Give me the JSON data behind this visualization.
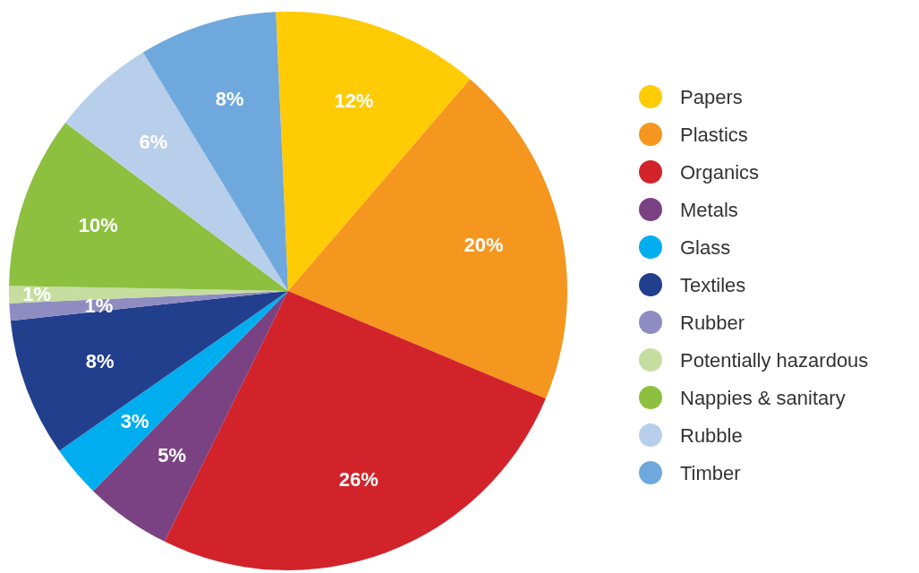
{
  "chart_data": {
    "type": "pie",
    "categories": [
      "Papers",
      "Plastics",
      "Organics",
      "Metals",
      "Glass",
      "Textiles",
      "Rubber",
      "Potentially hazardous",
      "Nappies & sanitary",
      "Rubble",
      "Timber"
    ],
    "values": [
      12,
      20,
      26,
      5,
      3,
      8,
      1,
      1,
      10,
      6,
      8
    ],
    "value_labels": [
      "12%",
      "20%",
      "26%",
      "5%",
      "3%",
      "8%",
      "1%",
      "1%",
      "10%",
      "6%",
      "8%"
    ],
    "colors": [
      "#ffcb05",
      "#f5961e",
      "#d2232a",
      "#7b4283",
      "#00aeef",
      "#223f8e",
      "#8f8cc2",
      "#c5dea0",
      "#8dc03f",
      "#b8cfec",
      "#6fa8dc"
    ],
    "legend": "right"
  }
}
